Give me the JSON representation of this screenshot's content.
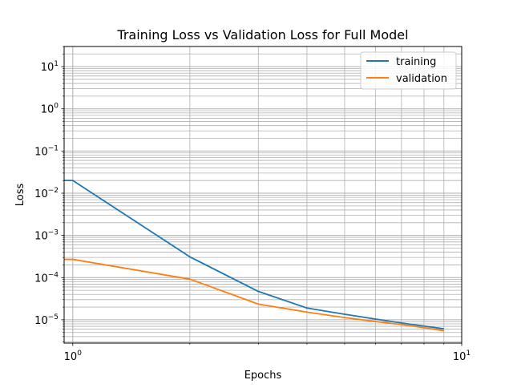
{
  "chart_data": {
    "type": "line",
    "title": "Training Loss vs Validation Loss for Full Model",
    "xlabel": "Epochs",
    "ylabel": "Loss",
    "xscale": "log",
    "yscale": "log",
    "xlim": [
      0.95,
      10
    ],
    "ylim": [
      2.8e-06,
      30
    ],
    "grid": "major and minor",
    "legend_position": "top-right",
    "x_ticks": [
      {
        "value": 1,
        "base": "10",
        "exp": "0"
      },
      {
        "value": 10,
        "base": "10",
        "exp": "1"
      }
    ],
    "y_ticks": [
      {
        "value": 1e-05,
        "base": "10",
        "exp": "−5"
      },
      {
        "value": 0.0001,
        "base": "10",
        "exp": "−4"
      },
      {
        "value": 0.001,
        "base": "10",
        "exp": "−3"
      },
      {
        "value": 0.01,
        "base": "10",
        "exp": "−2"
      },
      {
        "value": 0.1,
        "base": "10",
        "exp": "−1"
      },
      {
        "value": 1,
        "base": "10",
        "exp": "0"
      },
      {
        "value": 10,
        "base": "10",
        "exp": "1"
      }
    ],
    "x": [
      0,
      1,
      2,
      3,
      4,
      5,
      6,
      7,
      8,
      9
    ],
    "series": [
      {
        "name": "training",
        "color": "#1f77b4",
        "values": [
          0.02,
          0.02,
          0.00031,
          4.7e-05,
          1.9e-05,
          1.35e-05,
          1.04e-05,
          8.4e-06,
          7.1e-06,
          6.1e-06
        ]
      },
      {
        "name": "validation",
        "color": "#ff7f0e",
        "values": [
          0.00027,
          0.00027,
          9.2e-05,
          2.35e-05,
          1.52e-05,
          1.13e-05,
          9.1e-06,
          7.7e-06,
          6.5e-06,
          5.5e-06
        ]
      }
    ]
  }
}
